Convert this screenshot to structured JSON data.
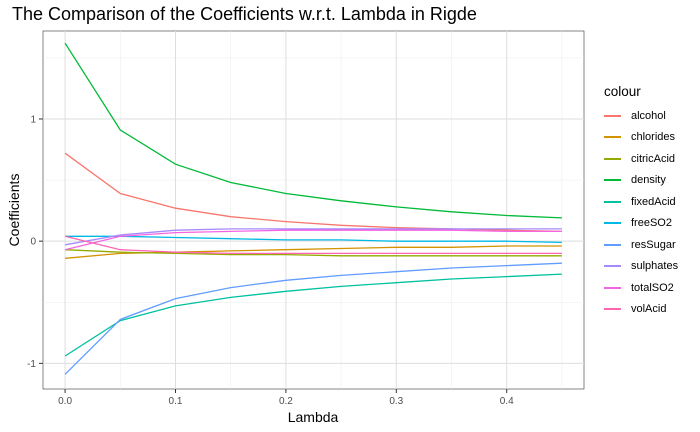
{
  "chart_data": {
    "type": "line",
    "title": "The Comparison of the Coefficients w.r.t. Lambda in Rigde",
    "xlabel": "Lambda",
    "ylabel": "Coefficients",
    "xlim": [
      -0.02,
      0.47
    ],
    "ylim": [
      -1.21,
      1.72
    ],
    "x_ticks": [
      0.0,
      0.1,
      0.2,
      0.3,
      0.4
    ],
    "x_tick_labels": [
      "0.0",
      "0.1",
      "0.2",
      "0.3",
      "0.4"
    ],
    "y_ticks": [
      -1,
      0,
      1
    ],
    "y_tick_labels": [
      "-1",
      "0",
      "1"
    ],
    "grid": true,
    "legend_title": "colour",
    "legend_position": "right",
    "x": [
      0.0,
      0.05,
      0.1,
      0.15,
      0.2,
      0.25,
      0.3,
      0.35,
      0.4,
      0.45
    ],
    "series": [
      {
        "name": "alcohol",
        "color": "#F8766D",
        "values": [
          0.72,
          0.39,
          0.27,
          0.2,
          0.16,
          0.13,
          0.11,
          0.1,
          0.09,
          0.08
        ]
      },
      {
        "name": "chlorides",
        "color": "#D39200",
        "values": [
          -0.14,
          -0.1,
          -0.09,
          -0.08,
          -0.07,
          -0.06,
          -0.05,
          -0.05,
          -0.04,
          -0.04
        ]
      },
      {
        "name": "citricAcid",
        "color": "#93AA00",
        "values": [
          -0.07,
          -0.09,
          -0.1,
          -0.11,
          -0.11,
          -0.12,
          -0.12,
          -0.12,
          -0.12,
          -0.12
        ]
      },
      {
        "name": "density",
        "color": "#00BA38",
        "values": [
          1.62,
          0.91,
          0.63,
          0.48,
          0.39,
          0.33,
          0.28,
          0.24,
          0.21,
          0.19
        ]
      },
      {
        "name": "fixedAcid",
        "color": "#00C19F",
        "values": [
          -0.94,
          -0.65,
          -0.53,
          -0.46,
          -0.41,
          -0.37,
          -0.34,
          -0.31,
          -0.29,
          -0.27
        ]
      },
      {
        "name": "freeSO2",
        "color": "#00B9E3",
        "values": [
          0.04,
          0.04,
          0.03,
          0.02,
          0.01,
          0.01,
          0.0,
          0.0,
          0.0,
          -0.01
        ]
      },
      {
        "name": "resSugar",
        "color": "#619CFF",
        "values": [
          -1.09,
          -0.64,
          -0.47,
          -0.38,
          -0.32,
          -0.28,
          -0.25,
          -0.22,
          -0.2,
          -0.18
        ]
      },
      {
        "name": "sulphates",
        "color": "#A58AFF",
        "values": [
          -0.03,
          0.05,
          0.09,
          0.1,
          0.1,
          0.1,
          0.1,
          0.1,
          0.1,
          0.1
        ]
      },
      {
        "name": "totalSO2",
        "color": "#F564E3",
        "values": [
          -0.07,
          0.04,
          0.07,
          0.08,
          0.09,
          0.09,
          0.09,
          0.09,
          0.08,
          0.08
        ]
      },
      {
        "name": "volAcid",
        "color": "#FF64B0",
        "values": [
          0.04,
          -0.07,
          -0.09,
          -0.1,
          -0.1,
          -0.1,
          -0.1,
          -0.1,
          -0.1,
          -0.1
        ]
      }
    ]
  }
}
